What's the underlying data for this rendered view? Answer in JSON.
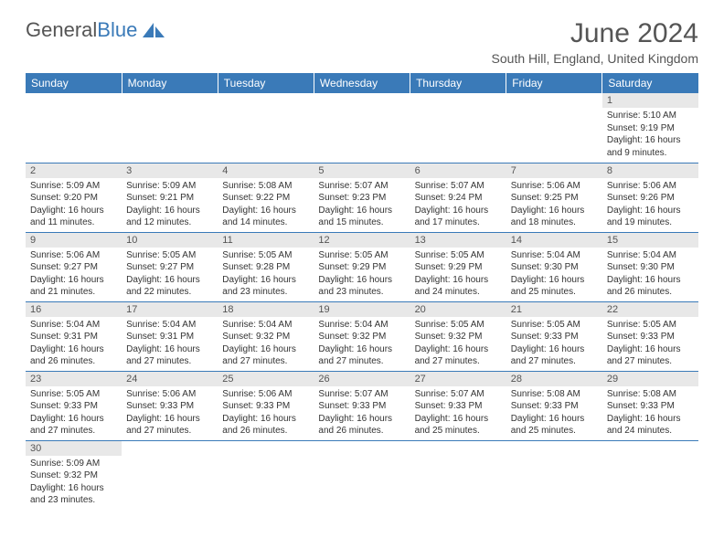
{
  "logo": {
    "text1": "General",
    "text2": "Blue"
  },
  "title": "June 2024",
  "location": "South Hill, England, United Kingdom",
  "colors": {
    "header_bg": "#3a7ab8",
    "header_fg": "#ffffff",
    "daynum_bg": "#e8e8e8",
    "text": "#555555",
    "border": "#3a7ab8"
  },
  "weekdays": [
    "Sunday",
    "Monday",
    "Tuesday",
    "Wednesday",
    "Thursday",
    "Friday",
    "Saturday"
  ],
  "weeks": [
    [
      null,
      null,
      null,
      null,
      null,
      null,
      {
        "n": "1",
        "sr": "5:10 AM",
        "ss": "9:19 PM",
        "dl": "16 hours and 9 minutes."
      }
    ],
    [
      {
        "n": "2",
        "sr": "5:09 AM",
        "ss": "9:20 PM",
        "dl": "16 hours and 11 minutes."
      },
      {
        "n": "3",
        "sr": "5:09 AM",
        "ss": "9:21 PM",
        "dl": "16 hours and 12 minutes."
      },
      {
        "n": "4",
        "sr": "5:08 AM",
        "ss": "9:22 PM",
        "dl": "16 hours and 14 minutes."
      },
      {
        "n": "5",
        "sr": "5:07 AM",
        "ss": "9:23 PM",
        "dl": "16 hours and 15 minutes."
      },
      {
        "n": "6",
        "sr": "5:07 AM",
        "ss": "9:24 PM",
        "dl": "16 hours and 17 minutes."
      },
      {
        "n": "7",
        "sr": "5:06 AM",
        "ss": "9:25 PM",
        "dl": "16 hours and 18 minutes."
      },
      {
        "n": "8",
        "sr": "5:06 AM",
        "ss": "9:26 PM",
        "dl": "16 hours and 19 minutes."
      }
    ],
    [
      {
        "n": "9",
        "sr": "5:06 AM",
        "ss": "9:27 PM",
        "dl": "16 hours and 21 minutes."
      },
      {
        "n": "10",
        "sr": "5:05 AM",
        "ss": "9:27 PM",
        "dl": "16 hours and 22 minutes."
      },
      {
        "n": "11",
        "sr": "5:05 AM",
        "ss": "9:28 PM",
        "dl": "16 hours and 23 minutes."
      },
      {
        "n": "12",
        "sr": "5:05 AM",
        "ss": "9:29 PM",
        "dl": "16 hours and 23 minutes."
      },
      {
        "n": "13",
        "sr": "5:05 AM",
        "ss": "9:29 PM",
        "dl": "16 hours and 24 minutes."
      },
      {
        "n": "14",
        "sr": "5:04 AM",
        "ss": "9:30 PM",
        "dl": "16 hours and 25 minutes."
      },
      {
        "n": "15",
        "sr": "5:04 AM",
        "ss": "9:30 PM",
        "dl": "16 hours and 26 minutes."
      }
    ],
    [
      {
        "n": "16",
        "sr": "5:04 AM",
        "ss": "9:31 PM",
        "dl": "16 hours and 26 minutes."
      },
      {
        "n": "17",
        "sr": "5:04 AM",
        "ss": "9:31 PM",
        "dl": "16 hours and 27 minutes."
      },
      {
        "n": "18",
        "sr": "5:04 AM",
        "ss": "9:32 PM",
        "dl": "16 hours and 27 minutes."
      },
      {
        "n": "19",
        "sr": "5:04 AM",
        "ss": "9:32 PM",
        "dl": "16 hours and 27 minutes."
      },
      {
        "n": "20",
        "sr": "5:05 AM",
        "ss": "9:32 PM",
        "dl": "16 hours and 27 minutes."
      },
      {
        "n": "21",
        "sr": "5:05 AM",
        "ss": "9:33 PM",
        "dl": "16 hours and 27 minutes."
      },
      {
        "n": "22",
        "sr": "5:05 AM",
        "ss": "9:33 PM",
        "dl": "16 hours and 27 minutes."
      }
    ],
    [
      {
        "n": "23",
        "sr": "5:05 AM",
        "ss": "9:33 PM",
        "dl": "16 hours and 27 minutes."
      },
      {
        "n": "24",
        "sr": "5:06 AM",
        "ss": "9:33 PM",
        "dl": "16 hours and 27 minutes."
      },
      {
        "n": "25",
        "sr": "5:06 AM",
        "ss": "9:33 PM",
        "dl": "16 hours and 26 minutes."
      },
      {
        "n": "26",
        "sr": "5:07 AM",
        "ss": "9:33 PM",
        "dl": "16 hours and 26 minutes."
      },
      {
        "n": "27",
        "sr": "5:07 AM",
        "ss": "9:33 PM",
        "dl": "16 hours and 25 minutes."
      },
      {
        "n": "28",
        "sr": "5:08 AM",
        "ss": "9:33 PM",
        "dl": "16 hours and 25 minutes."
      },
      {
        "n": "29",
        "sr": "5:08 AM",
        "ss": "9:33 PM",
        "dl": "16 hours and 24 minutes."
      }
    ],
    [
      {
        "n": "30",
        "sr": "5:09 AM",
        "ss": "9:32 PM",
        "dl": "16 hours and 23 minutes."
      },
      null,
      null,
      null,
      null,
      null,
      null
    ]
  ],
  "labels": {
    "sunrise": "Sunrise:",
    "sunset": "Sunset:",
    "daylight": "Daylight:"
  }
}
